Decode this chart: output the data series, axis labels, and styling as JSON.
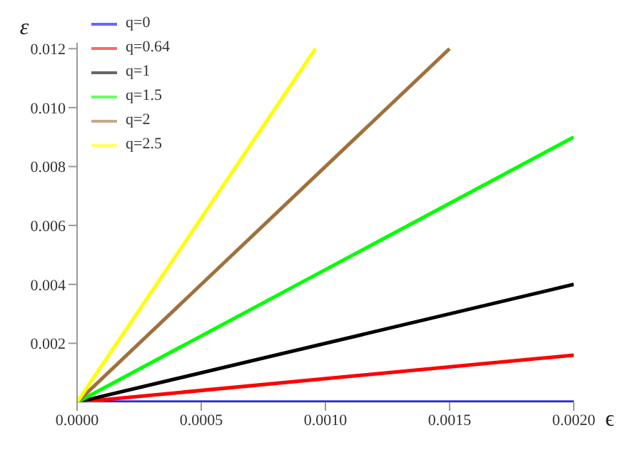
{
  "chart_data": {
    "type": "line",
    "xlabel": "ϵ",
    "ylabel": "ε",
    "xlim": [
      0,
      0.002
    ],
    "ylim": [
      0,
      0.0122
    ],
    "xticks": [
      {
        "value": 0,
        "label": "0.0000"
      },
      {
        "value": 0.0005,
        "label": "0.0005"
      },
      {
        "value": 0.001,
        "label": "0.0010"
      },
      {
        "value": 0.0015,
        "label": "0.0015"
      },
      {
        "value": 0.002,
        "label": "0.0020"
      }
    ],
    "yticks": [
      0.002,
      0.004,
      0.006,
      0.008,
      {
        "value": 0.01,
        "label": "0.010"
      },
      0.012
    ],
    "series": [
      {
        "name": "q=0",
        "color": "#0000ff",
        "x": [
          0,
          0.002
        ],
        "values": [
          0,
          0
        ]
      },
      {
        "name": "q=0.64",
        "color": "#ff0000",
        "x": [
          0,
          0.002
        ],
        "values": [
          0,
          0.0016
        ]
      },
      {
        "name": "q=1",
        "color": "#000000",
        "x": [
          0,
          0.002
        ],
        "values": [
          0,
          0.004
        ]
      },
      {
        "name": "q=1.5",
        "color": "#00ff00",
        "x": [
          0,
          0.002
        ],
        "values": [
          0,
          0.009
        ]
      },
      {
        "name": "q=2",
        "color": "#a0703c",
        "x": [
          0,
          0.0015
        ],
        "values": [
          0,
          0.012
        ]
      },
      {
        "name": "q=2.5",
        "color": "#ffff00",
        "x": [
          0,
          0.00096
        ],
        "values": [
          0,
          0.012
        ]
      }
    ],
    "legend": "top left",
    "grid": false,
    "marker": "none",
    "line_style": "solid"
  }
}
